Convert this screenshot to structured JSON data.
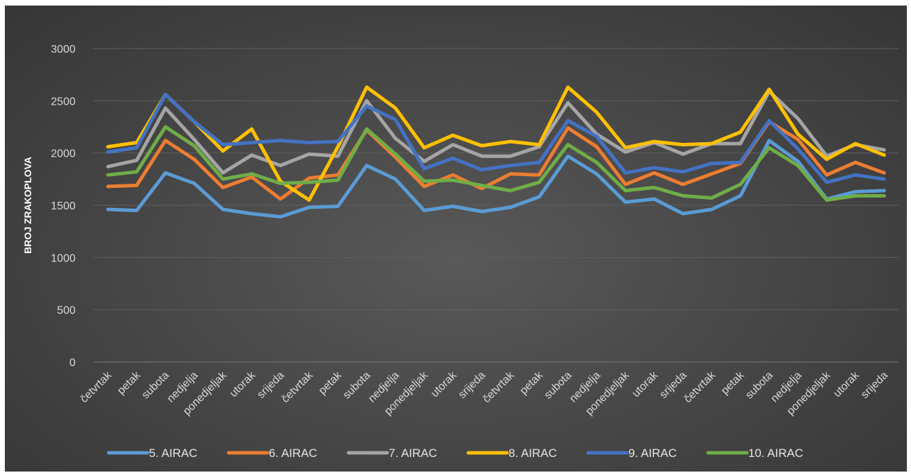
{
  "chart_data": {
    "type": "line",
    "title": "",
    "xlabel": "",
    "ylabel": "BROJ ZRAKOPLOVA",
    "ylim": [
      0,
      3000
    ],
    "yticks": [
      0,
      500,
      1000,
      1500,
      2000,
      2500,
      3000
    ],
    "grid": true,
    "legend_position": "bottom",
    "categories": [
      "četvrtak",
      "petak",
      "subota",
      "nedjelja",
      "ponedjeljak",
      "utorak",
      "srijeda",
      "četvrtak",
      "petak",
      "subota",
      "nedjelja",
      "ponedjeljak",
      "utorak",
      "srijeda",
      "četvrtak",
      "petak",
      "subota",
      "nedjelja",
      "ponedjeljak",
      "utorak",
      "srijeda",
      "četvrtak",
      "petak",
      "subota",
      "nedjelja",
      "ponedjeljak",
      "utorak",
      "srijeda"
    ],
    "series": [
      {
        "name": "5. AIRAC",
        "color": "#5b9bd5",
        "values": [
          1460,
          1450,
          1810,
          1710,
          1460,
          1420,
          1390,
          1480,
          1490,
          1880,
          1750,
          1450,
          1490,
          1440,
          1480,
          1580,
          1970,
          1800,
          1530,
          1560,
          1420,
          1460,
          1590,
          2120,
          1920,
          1560,
          1630,
          1640
        ]
      },
      {
        "name": "6. AIRAC",
        "color": "#ed7d31",
        "values": [
          1680,
          1690,
          2120,
          1940,
          1670,
          1770,
          1560,
          1760,
          1790,
          2220,
          1960,
          1680,
          1790,
          1660,
          1800,
          1790,
          2240,
          2060,
          1700,
          1810,
          1700,
          1800,
          1900,
          2300,
          2130,
          1790,
          1910,
          1810
        ]
      },
      {
        "name": "7. AIRAC",
        "color": "#a5a5a5",
        "values": [
          1870,
          1930,
          2430,
          2130,
          1810,
          1980,
          1880,
          1990,
          1970,
          2500,
          2140,
          1920,
          2080,
          1970,
          1970,
          2060,
          2480,
          2180,
          2010,
          2100,
          1990,
          2090,
          2090,
          2590,
          2330,
          1970,
          2080,
          2030
        ]
      },
      {
        "name": "8. AIRAC",
        "color": "#ffc000",
        "values": [
          2060,
          2100,
          2560,
          2300,
          2020,
          2230,
          1730,
          1550,
          2060,
          2630,
          2430,
          2050,
          2170,
          2070,
          2110,
          2080,
          2630,
          2390,
          2050,
          2110,
          2080,
          2090,
          2200,
          2610,
          2180,
          1940,
          2090,
          1980
        ]
      },
      {
        "name": "9. AIRAC",
        "color": "#4472c4",
        "values": [
          2010,
          2050,
          2560,
          2300,
          2080,
          2100,
          2120,
          2100,
          2110,
          2450,
          2320,
          1850,
          1950,
          1840,
          1880,
          1910,
          2310,
          2160,
          1810,
          1860,
          1820,
          1900,
          1910,
          2310,
          2040,
          1720,
          1790,
          1750
        ]
      },
      {
        "name": "10. AIRAC",
        "color": "#70ad47",
        "values": [
          1790,
          1820,
          2250,
          2070,
          1750,
          1800,
          1710,
          1720,
          1740,
          2230,
          1990,
          1730,
          1740,
          1690,
          1640,
          1720,
          2080,
          1910,
          1640,
          1670,
          1590,
          1570,
          1700,
          2050,
          1880,
          1550,
          1590,
          1590
        ]
      }
    ]
  }
}
